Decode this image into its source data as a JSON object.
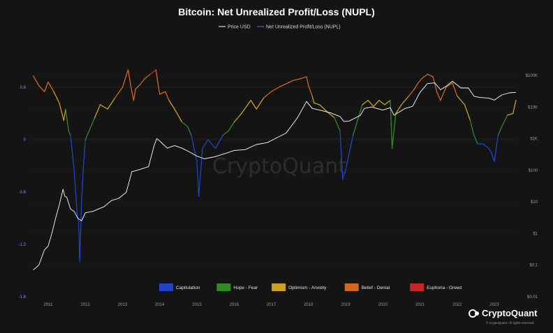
{
  "chart_data": {
    "type": "line",
    "title": "Bitcoin: Net Unrealized Profit/Loss (NUPL)",
    "legend_top": [
      {
        "name": "Price USD",
        "color": "#ffffff"
      },
      {
        "name": "Net Unrealized Profit/Loss (NUPL)",
        "color": "#6a5cff"
      }
    ],
    "legend_bottom": [
      {
        "name": "Capitulation",
        "color": "#1f43c9"
      },
      {
        "name": "Hope - Fear",
        "color": "#2e8b22"
      },
      {
        "name": "Optimism - Anxiety",
        "color": "#c9a21b"
      },
      {
        "name": "Belief - Denial",
        "color": "#d2661a"
      },
      {
        "name": "Euphoria - Greed",
        "color": "#c42525"
      }
    ],
    "x_ticks": [
      "2011",
      "2012",
      "2013",
      "2014",
      "2015",
      "2016",
      "2017",
      "2018",
      "2019",
      "2020",
      "2021",
      "2022",
      "2023"
    ],
    "left_axis": {
      "ticks": [
        "0.6",
        "0",
        "-0.6",
        "-1.2",
        "-1.8"
      ],
      "values": [
        0.6,
        0,
        -0.6,
        -1.2,
        -1.8
      ],
      "range": [
        -1.8,
        0.8
      ]
    },
    "right_axis": {
      "ticks": [
        "$100K",
        "$10K",
        "$1K",
        "$100",
        "$10",
        "$1",
        "$0.1",
        "$0.01"
      ],
      "scale": "log",
      "range": [
        0.01,
        150000
      ]
    },
    "x_range": [
      2010.55,
      2023.6
    ],
    "nupl": {
      "x": [
        2010.6,
        2010.75,
        2010.9,
        2011.0,
        2011.15,
        2011.3,
        2011.42,
        2011.47,
        2011.55,
        2011.6,
        2011.65,
        2011.7,
        2011.78,
        2011.82,
        2011.85,
        2011.9,
        2011.95,
        2012.0,
        2012.1,
        2012.25,
        2012.4,
        2012.6,
        2012.8,
        2013.0,
        2013.15,
        2013.25,
        2013.3,
        2013.35,
        2013.45,
        2013.6,
        2013.75,
        2013.9,
        2013.95,
        2014.0,
        2014.15,
        2014.25,
        2014.4,
        2014.6,
        2014.75,
        2014.85,
        2015.0,
        2015.05,
        2015.15,
        2015.3,
        2015.5,
        2015.7,
        2015.85,
        2016.0,
        2016.2,
        2016.45,
        2016.6,
        2016.8,
        2017.0,
        2017.2,
        2017.45,
        2017.6,
        2017.8,
        2017.95,
        2018.0,
        2018.1,
        2018.15,
        2018.3,
        2018.5,
        2018.7,
        2018.85,
        2018.92,
        2019.0,
        2019.2,
        2019.45,
        2019.6,
        2019.75,
        2019.9,
        2020.05,
        2020.2,
        2020.25,
        2020.35,
        2020.5,
        2020.7,
        2020.85,
        2020.95,
        2021.05,
        2021.2,
        2021.35,
        2021.45,
        2021.55,
        2021.7,
        2021.87,
        2022.0,
        2022.2,
        2022.35,
        2022.45,
        2022.55,
        2022.7,
        2022.85,
        2022.92,
        2023.0,
        2023.1,
        2023.2,
        2023.35,
        2023.5,
        2023.58
      ],
      "y": [
        0.73,
        0.62,
        0.55,
        0.66,
        0.55,
        0.42,
        0.22,
        0.35,
        0.1,
        0.05,
        -0.15,
        -0.35,
        -0.85,
        -0.95,
        -1.4,
        -0.7,
        -0.3,
        0.0,
        0.1,
        0.25,
        0.4,
        0.35,
        0.48,
        0.6,
        0.8,
        0.55,
        0.45,
        0.58,
        0.62,
        0.7,
        0.75,
        0.8,
        0.65,
        0.52,
        0.55,
        0.45,
        0.35,
        0.2,
        0.15,
        0.05,
        -0.25,
        -0.65,
        -0.1,
        0.0,
        -0.1,
        0.05,
        0.1,
        0.2,
        0.3,
        0.45,
        0.35,
        0.48,
        0.55,
        0.6,
        0.65,
        0.68,
        0.7,
        0.72,
        0.62,
        0.5,
        0.42,
        0.4,
        0.32,
        0.25,
        0.1,
        -0.45,
        -0.35,
        0.05,
        0.4,
        0.45,
        0.38,
        0.45,
        0.4,
        0.45,
        -0.1,
        0.3,
        0.4,
        0.5,
        0.58,
        0.65,
        0.7,
        0.75,
        0.72,
        0.55,
        0.45,
        0.6,
        0.65,
        0.5,
        0.4,
        0.22,
        0.05,
        -0.05,
        -0.05,
        -0.1,
        -0.15,
        -0.25,
        0.05,
        0.15,
        0.28,
        0.3,
        0.45
      ]
    },
    "price": {
      "x": [
        2010.6,
        2010.75,
        2010.9,
        2011.0,
        2011.1,
        2011.2,
        2011.3,
        2011.4,
        2011.45,
        2011.5,
        2011.6,
        2011.7,
        2011.8,
        2011.9,
        2012.0,
        2012.2,
        2012.5,
        2012.7,
        2012.9,
        2013.1,
        2013.25,
        2013.4,
        2013.7,
        2013.85,
        2013.92,
        2014.0,
        2014.1,
        2014.2,
        2014.4,
        2014.6,
        2014.8,
        2015.0,
        2015.2,
        2015.5,
        2015.8,
        2016.0,
        2016.3,
        2016.6,
        2016.9,
        2017.1,
        2017.4,
        2017.7,
        2017.95,
        2018.1,
        2018.3,
        2018.6,
        2018.85,
        2018.95,
        2019.1,
        2019.4,
        2019.5,
        2019.7,
        2020.0,
        2020.2,
        2020.3,
        2020.6,
        2020.8,
        2021.0,
        2021.2,
        2021.4,
        2021.55,
        2021.7,
        2021.87,
        2022.1,
        2022.3,
        2022.45,
        2022.6,
        2022.85,
        2023.0,
        2023.2,
        2023.4,
        2023.58
      ],
      "y": [
        0.07,
        0.1,
        0.3,
        0.4,
        1.0,
        3.0,
        8.0,
        25.0,
        15.0,
        14.0,
        6.0,
        5.0,
        3.0,
        2.5,
        4.5,
        5.0,
        7.0,
        11.0,
        13.0,
        20.0,
        90.0,
        100.0,
        130.0,
        600.0,
        1000.0,
        850.0,
        650.0,
        500.0,
        600.0,
        500.0,
        380.0,
        280.0,
        230.0,
        270.0,
        350.0,
        420.0,
        450.0,
        650.0,
        750.0,
        1000.0,
        1500.0,
        4500.0,
        15000.0,
        9000.0,
        8000.0,
        6500.0,
        5000.0,
        3500.0,
        3600.0,
        5500.0,
        9000.0,
        10000.0,
        8000.0,
        9500.0,
        5500.0,
        9000.0,
        10500.0,
        29000.0,
        55000.0,
        58000.0,
        35000.0,
        45000.0,
        65000.0,
        40000.0,
        40000.0,
        22000.0,
        20000.0,
        19000.0,
        16500.0,
        24000.0,
        28000.0,
        29000.0
      ]
    },
    "watermark": "CryptoQuant",
    "branding": {
      "name": "CryptoQuant",
      "rights": "© CryptoQuant. All rights reserved."
    }
  }
}
